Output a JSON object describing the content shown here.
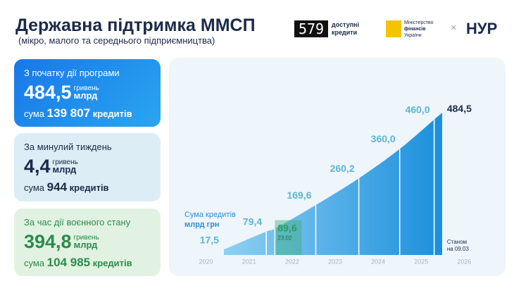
{
  "header": {
    "title": "Державна підтримка ММСП",
    "subtitle": "(мікро, малого та середнього підприємництва)",
    "logos": {
      "brand_mark": "579",
      "brand_text": [
        "доступні",
        "кредити"
      ],
      "ministry": [
        "Міністерство",
        "фінансів",
        "України"
      ],
      "separator": "×",
      "partner": "НУР"
    }
  },
  "cards": [
    {
      "title": "З початку дії програми",
      "amount": "484,5",
      "unit_top": "гривень",
      "unit_bottom": "млрд",
      "count_prefix": "сума",
      "count": "139 807",
      "count_unit": "кредитів"
    },
    {
      "title": "За минулий тиждень",
      "amount": "4,4",
      "unit_top": "гривень",
      "unit_bottom": "млрд",
      "count_prefix": "сума",
      "count": "944",
      "count_unit": "кредитів"
    },
    {
      "title": "За час дії воєнного стану",
      "amount": "394,8",
      "unit_top": "гривень",
      "unit_bottom": "млрд",
      "count_prefix": "сума",
      "count": "104 985",
      "count_unit": "кредитів"
    }
  ],
  "chart_data": {
    "type": "area",
    "annotation": [
      "Сума кредитів",
      "млрд грн"
    ],
    "x": [
      2020.4,
      2021.4,
      2021.6,
      2022.55,
      2023.55,
      2024.5,
      2025.3,
      2025.5
    ],
    "values": [
      17.5,
      79.4,
      89.6,
      169.6,
      260.2,
      360.0,
      460.0,
      484.5
    ],
    "value_labels": [
      "17,5",
      "79,4",
      "89,6",
      "169,6",
      "260,2",
      "360,0",
      "460,0",
      "484,5"
    ],
    "label_colors": [
      "#5db6d2",
      "#5db6d2",
      "#2f9a63",
      "#5db6d2",
      "#5db6d2",
      "#5db6d2",
      "#5db6d2",
      "#1b2a48"
    ],
    "point_note": {
      "index": 2,
      "text": "23.02"
    },
    "end_note": [
      "Станом",
      "на 09.03"
    ],
    "color": "#1e9be0",
    "xlim": [
      2019.5,
      2026.5
    ],
    "xticks": [
      2020,
      2021,
      2022,
      2023,
      2024,
      2025,
      2026
    ],
    "ylim": [
      0,
      500
    ]
  }
}
